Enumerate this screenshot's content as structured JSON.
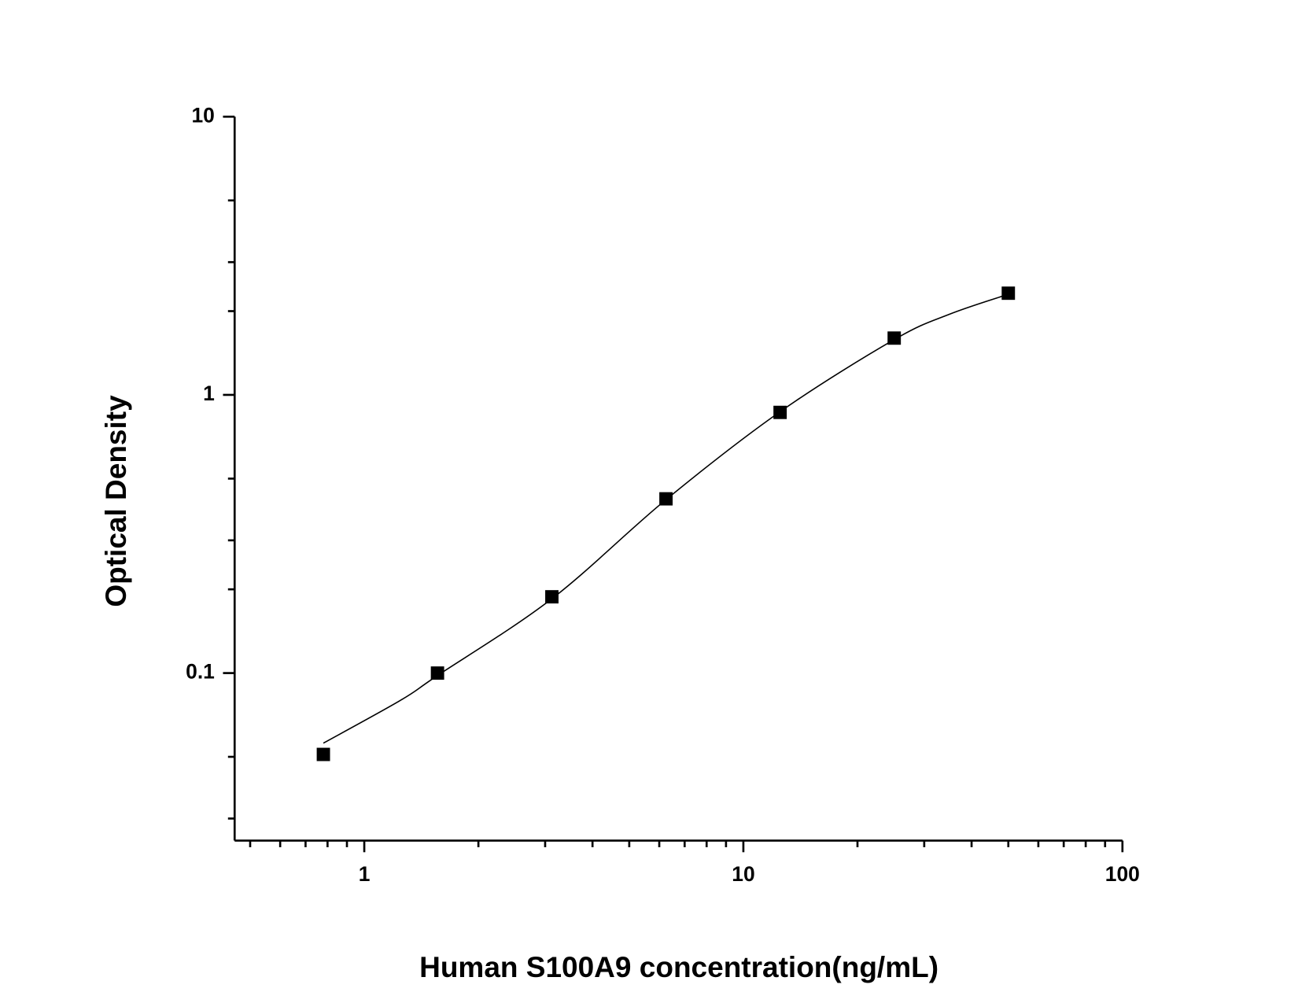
{
  "chart_data": {
    "type": "scatter",
    "xlabel": "Human S100A9 concentration(ng/mL)",
    "ylabel": "Optical Density",
    "xscale": "log",
    "yscale": "log",
    "xlim": [
      0.455,
      100
    ],
    "ylim": [
      0.025,
      10
    ],
    "xticks": [
      1,
      10,
      100
    ],
    "yticks": [
      0.1,
      1,
      10
    ],
    "xminorticks": [
      0.5,
      0.6,
      0.7,
      0.8,
      0.9,
      2,
      3,
      4,
      5,
      6,
      7,
      8,
      9,
      20,
      30,
      40,
      50,
      60,
      70,
      80,
      90
    ],
    "yminorticks": [
      0.03,
      0.05,
      0.2,
      0.3,
      0.5,
      2,
      3,
      5
    ],
    "series": [
      {
        "kind": "points",
        "color": "#000000",
        "x": [
          0.78,
          1.56,
          3.125,
          6.25,
          12.5,
          25,
          50
        ],
        "values": [
          0.051,
          0.1,
          0.188,
          0.423,
          0.865,
          1.6,
          2.32
        ]
      },
      {
        "kind": "curve",
        "color": "#000000",
        "x": [
          0.78,
          1.25,
          1.56,
          3.125,
          6.25,
          12.5,
          25,
          35,
          50
        ],
        "values": [
          0.056,
          0.08,
          0.098,
          0.185,
          0.42,
          0.87,
          1.58,
          1.95,
          2.3
        ]
      }
    ]
  }
}
